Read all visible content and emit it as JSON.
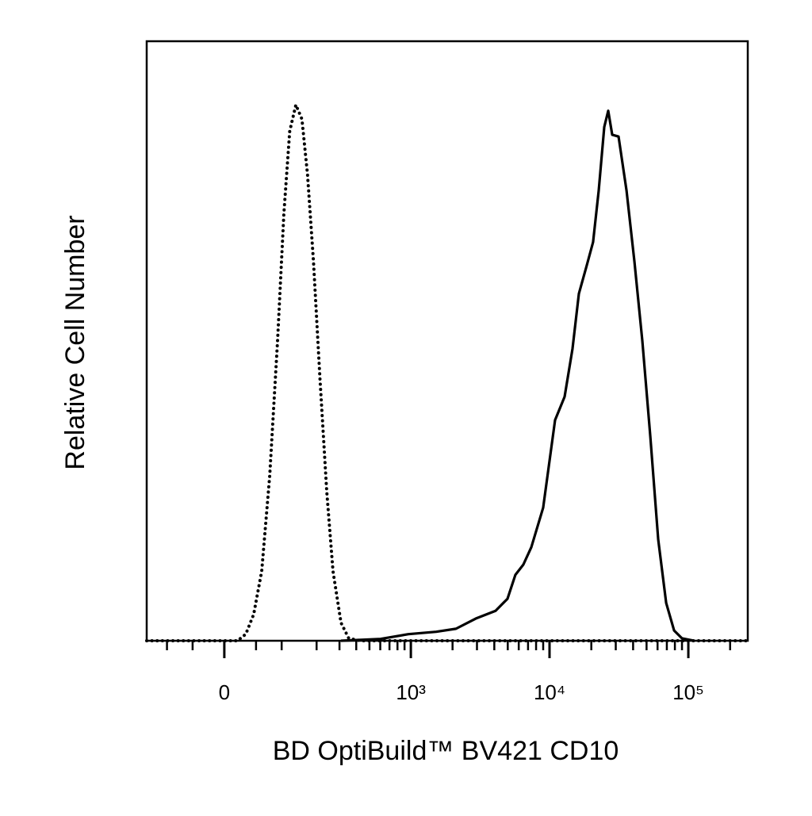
{
  "chart_data": {
    "type": "line",
    "xlabel": "BD OptiBuild™ BV421 CD10",
    "ylabel": "Relative Cell Number",
    "xscale": "biexponential",
    "xlim": [
      -152,
      268000
    ],
    "ylim": [
      0,
      100
    ],
    "xticks": [
      {
        "value": 0,
        "label": "0"
      },
      {
        "value": 1000,
        "label": "10³"
      },
      {
        "value": 10000,
        "label": "10⁴"
      },
      {
        "value": 100000,
        "label": "10⁵"
      }
    ],
    "xticks_minor": [
      -100,
      -50,
      50,
      100,
      200,
      300,
      400,
      500,
      600,
      700,
      800,
      900,
      2000,
      3000,
      4000,
      5000,
      6000,
      7000,
      8000,
      9000,
      20000,
      30000,
      40000,
      50000,
      60000,
      70000,
      80000,
      90000,
      200000
    ],
    "series": [
      {
        "color": "#000000",
        "style": "dotted",
        "x": [
          -152,
          20,
          33,
          46,
          60,
          75,
          91,
          105,
          119,
          135,
          152,
          169,
          189,
          213,
          240,
          268,
          308,
          352,
          432,
          268000
        ],
        "values": [
          0,
          0,
          1.1,
          4.4,
          11.6,
          27.5,
          50,
          71.2,
          85,
          89.4,
          87,
          77.8,
          63.2,
          43.4,
          24.9,
          11.6,
          3.0,
          0.4,
          0,
          0
        ]
      },
      {
        "color": "#000000",
        "style": "solid",
        "x": [
          308,
          603,
          960,
          1522,
          2116,
          2942,
          4086,
          4976,
          5675,
          6474,
          7391,
          8998,
          10960,
          12839,
          14637,
          16271,
          18541,
          20594,
          22609,
          24788,
          26468,
          28284,
          31417,
          35866,
          40905,
          46626,
          53209,
          60654,
          69235,
          78996,
          90028,
          109700
        ],
        "values": [
          0,
          0.3,
          1.1,
          1.5,
          2.0,
          3.7,
          5.0,
          7.0,
          11.0,
          12.7,
          15.6,
          22.2,
          36.8,
          40.7,
          48.7,
          57.9,
          62.6,
          66.5,
          75.1,
          85.7,
          88.4,
          84.4,
          84.1,
          75.1,
          63.2,
          50.0,
          34.1,
          16.9,
          6.3,
          1.7,
          0.4,
          0
        ]
      }
    ]
  }
}
